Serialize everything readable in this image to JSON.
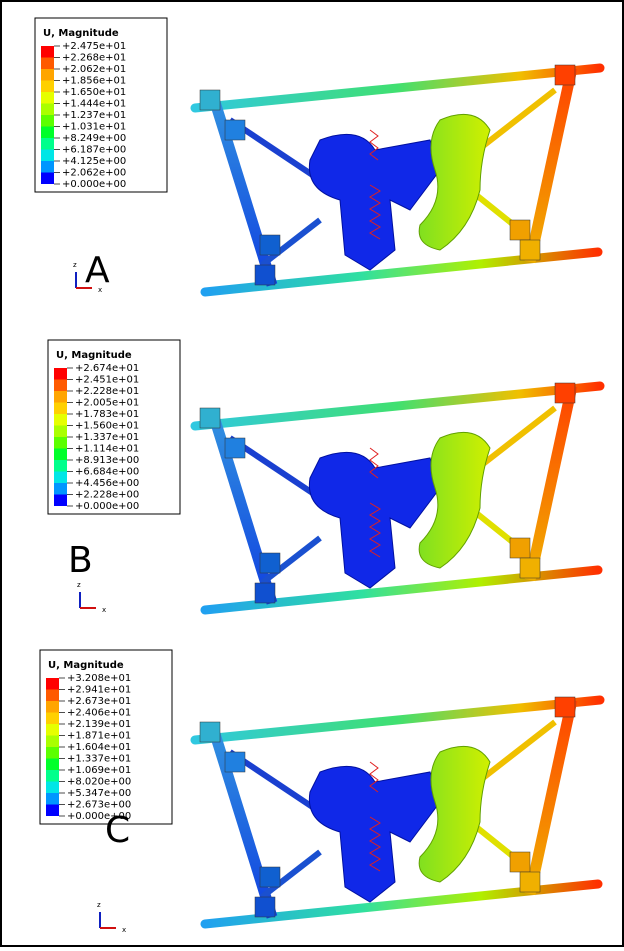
{
  "panels": [
    {
      "legend_title": "U, Magnitude",
      "legend_labels": [
        "+2.475e+01",
        "+2.268e+01",
        "+2.062e+01",
        "+1.856e+01",
        "+1.650e+01",
        "+1.444e+01",
        "+1.237e+01",
        "+1.031e+01",
        "+8.249e+00",
        "+6.187e+00",
        "+4.125e+00",
        "+2.062e+00",
        "+0.000e+00"
      ],
      "letter": "A",
      "axis_z": "z",
      "axis_x": "x"
    },
    {
      "legend_title": "U, Magnitude",
      "legend_labels": [
        "+2.674e+01",
        "+2.451e+01",
        "+2.228e+01",
        "+2.005e+01",
        "+1.783e+01",
        "+1.560e+01",
        "+1.337e+01",
        "+1.114e+01",
        "+8.913e+00",
        "+6.684e+00",
        "+4.456e+00",
        "+2.228e+00",
        "+0.000e+00"
      ],
      "letter": "B",
      "axis_z": "z",
      "axis_x": "x"
    },
    {
      "legend_title": "U, Magnitude",
      "legend_labels": [
        "+3.208e+01",
        "+2.941e+01",
        "+2.673e+01",
        "+2.406e+01",
        "+2.139e+01",
        "+1.871e+01",
        "+1.604e+01",
        "+1.337e+01",
        "+1.069e+01",
        "+8.020e+00",
        "+5.347e+00",
        "+2.673e+00",
        "+0.000e+00"
      ],
      "letter": "C",
      "axis_z": "z",
      "axis_x": "x"
    }
  ]
}
